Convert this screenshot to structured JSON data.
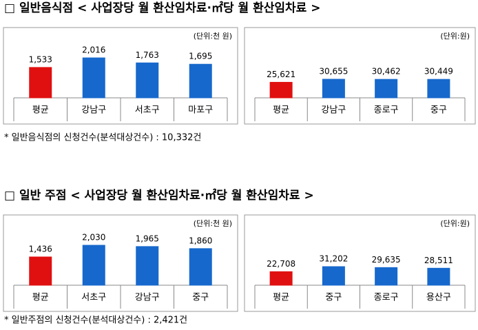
{
  "sections": [
    {
      "heading": "□ 일반음식점 < 사업장당 월 환산임차료·㎡당 월 환산임차료 >",
      "charts": [
        {
          "type": "bar",
          "unit": "(단위:천 원)",
          "categories": [
            "평균",
            "강남구",
            "서초구",
            "마포구"
          ],
          "values": [
            1533,
            2016,
            1763,
            1695
          ],
          "value_labels": [
            "1,533",
            "2,016",
            "1,763",
            "1,695"
          ],
          "colors": [
            "#e01010",
            "#1768cc",
            "#1768cc",
            "#1768cc"
          ]
        },
        {
          "type": "bar",
          "unit": "(단위:원)",
          "categories": [
            "평균",
            "강남구",
            "종로구",
            "중구"
          ],
          "values": [
            25621,
            30655,
            30462,
            30449
          ],
          "value_labels": [
            "25,621",
            "30,655",
            "30,462",
            "30,449"
          ],
          "colors": [
            "#e01010",
            "#1768cc",
            "#1768cc",
            "#1768cc"
          ]
        }
      ],
      "note": "* 일반음식점의 신청건수(분석대상건수) : 10,332건"
    },
    {
      "heading": "□ 일반 주점 < 사업장당 월 환산임차료·㎡당 월 환산임차료 >",
      "charts": [
        {
          "type": "bar",
          "unit": "(단위:천 원)",
          "categories": [
            "평균",
            "서초구",
            "강남구",
            "중구"
          ],
          "values": [
            1436,
            2030,
            1965,
            1860
          ],
          "value_labels": [
            "1,436",
            "2,030",
            "1,965",
            "1,860"
          ],
          "colors": [
            "#e01010",
            "#1768cc",
            "#1768cc",
            "#1768cc"
          ]
        },
        {
          "type": "bar",
          "unit": "(단위:원)",
          "categories": [
            "평균",
            "중구",
            "종로구",
            "용산구"
          ],
          "values": [
            22708,
            31202,
            29635,
            28511
          ],
          "value_labels": [
            "22,708",
            "31,202",
            "29,635",
            "28,511"
          ],
          "colors": [
            "#e01010",
            "#1768cc",
            "#1768cc",
            "#1768cc"
          ]
        }
      ],
      "note": "* 일반주점의 신청건수(분석대상건수) : 2,421건"
    }
  ]
}
